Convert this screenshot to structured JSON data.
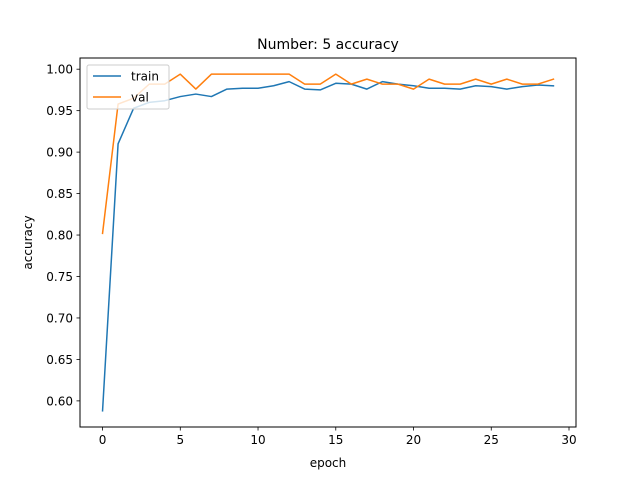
{
  "chart_data": {
    "type": "line",
    "title": "Number: 5 accuracy",
    "xlabel": "epoch",
    "ylabel": "accuracy",
    "xlim": [
      -1.45,
      30.45
    ],
    "ylim": [
      0.5685,
      1.0135
    ],
    "xticks": [
      0,
      5,
      10,
      15,
      20,
      25,
      30
    ],
    "yticks": [
      0.6,
      0.65,
      0.7,
      0.75,
      0.8,
      0.85,
      0.9,
      0.95,
      1.0
    ],
    "grid": false,
    "legend_position": "upper-left",
    "x": [
      0,
      1,
      2,
      3,
      4,
      5,
      6,
      7,
      8,
      9,
      10,
      11,
      12,
      13,
      14,
      15,
      16,
      17,
      18,
      19,
      20,
      21,
      22,
      23,
      24,
      25,
      26,
      27,
      28,
      29
    ],
    "series": [
      {
        "name": "train",
        "color": "#1f77b4",
        "values": [
          0.588,
          0.91,
          0.953,
          0.96,
          0.962,
          0.967,
          0.97,
          0.967,
          0.976,
          0.977,
          0.977,
          0.98,
          0.985,
          0.976,
          0.975,
          0.983,
          0.982,
          0.976,
          0.985,
          0.982,
          0.98,
          0.977,
          0.977,
          0.976,
          0.98,
          0.979,
          0.976,
          0.979,
          0.981,
          0.98
        ]
      },
      {
        "name": "val",
        "color": "#ff7f0e",
        "values": [
          0.802,
          0.958,
          0.965,
          0.982,
          0.982,
          0.994,
          0.976,
          0.994,
          0.994,
          0.994,
          0.994,
          0.994,
          0.994,
          0.982,
          0.982,
          0.994,
          0.982,
          0.988,
          0.982,
          0.982,
          0.976,
          0.988,
          0.982,
          0.982,
          0.988,
          0.982,
          0.988,
          0.982,
          0.982,
          0.988
        ]
      }
    ]
  }
}
